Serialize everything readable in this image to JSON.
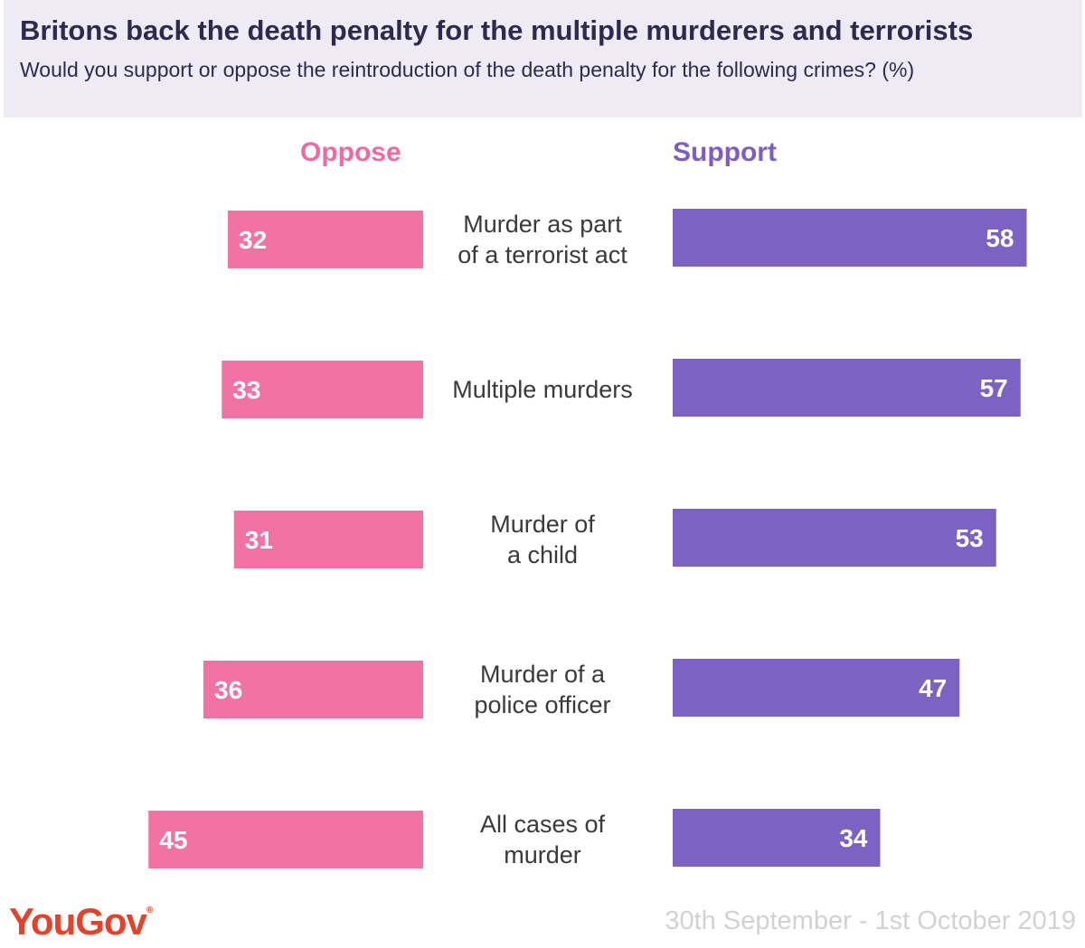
{
  "header": {
    "title": "Britons back the death penalty for the multiple murderers and terrorists",
    "subtitle": "Would you support or oppose the reintroduction of the death penalty for the following crimes? (%)"
  },
  "colors": {
    "oppose": "#f273a3",
    "support": "#7c62c3",
    "oppose_label": "#ee6aa0",
    "support_label": "#7c5dc7"
  },
  "chart_data": {
    "type": "bar",
    "orientation": "horizontal-diverging",
    "categories": [
      "Murder as part of a terrorist act",
      "Multiple murders",
      "Murder of a child",
      "Murder of a police officer",
      "All cases of murder"
    ],
    "series": [
      {
        "name": "Oppose",
        "values": [
          32,
          33,
          31,
          36,
          45
        ]
      },
      {
        "name": "Support",
        "values": [
          58,
          57,
          53,
          47,
          34
        ]
      }
    ],
    "title": "Britons back the death penalty for the multiple murderers and terrorists",
    "subtitle": "Would you support or oppose the reintroduction of the death penalty for the following crimes? (%)",
    "unit": "%"
  },
  "row_labels": [
    [
      "Murder as part",
      "of a terrorist act"
    ],
    [
      "Multiple murders"
    ],
    [
      "Murder of",
      "a child"
    ],
    [
      "Murder of a",
      "police officer"
    ],
    [
      "All cases of",
      "murder"
    ]
  ],
  "footer": {
    "brand": "YouGov",
    "brand_mark": "®",
    "date": "30th September - 1st October 2019"
  }
}
